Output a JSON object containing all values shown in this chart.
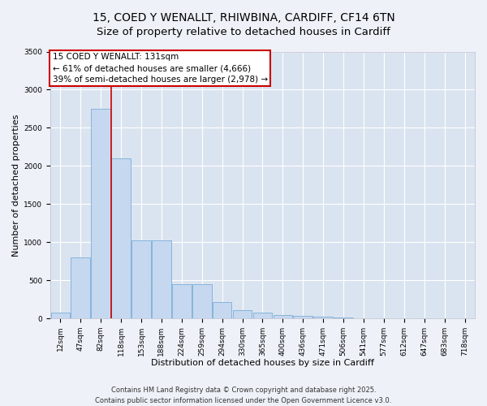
{
  "title_line1": "15, COED Y WENALLT, RHIWBINA, CARDIFF, CF14 6TN",
  "title_line2": "Size of property relative to detached houses in Cardiff",
  "xlabel": "Distribution of detached houses by size in Cardiff",
  "ylabel": "Number of detached properties",
  "categories": [
    "12sqm",
    "47sqm",
    "82sqm",
    "118sqm",
    "153sqm",
    "188sqm",
    "224sqm",
    "259sqm",
    "294sqm",
    "330sqm",
    "365sqm",
    "400sqm",
    "436sqm",
    "471sqm",
    "506sqm",
    "541sqm",
    "577sqm",
    "612sqm",
    "647sqm",
    "683sqm",
    "718sqm"
  ],
  "values": [
    80,
    800,
    2750,
    2100,
    1020,
    1020,
    450,
    450,
    220,
    110,
    80,
    50,
    30,
    20,
    8,
    5,
    3,
    2,
    1,
    1,
    0
  ],
  "bar_color": "#c5d8f0",
  "bar_edge_color": "#7aaed6",
  "vline_x": 2.5,
  "vline_color": "#cc0000",
  "annotation_title": "15 COED Y WENALLT: 131sqm",
  "annotation_line2": "← 61% of detached houses are smaller (4,666)",
  "annotation_line3": "39% of semi-detached houses are larger (2,978) →",
  "ylim": [
    0,
    3500
  ],
  "yticks": [
    0,
    500,
    1000,
    1500,
    2000,
    2500,
    3000,
    3500
  ],
  "footer_line1": "Contains HM Land Registry data © Crown copyright and database right 2025.",
  "footer_line2": "Contains public sector information licensed under the Open Government Licence v3.0.",
  "background_color": "#eef2f8",
  "plot_bg_color": "#dae4f0",
  "grid_color": "#ffffff",
  "title_fontsize": 10,
  "axis_label_fontsize": 8,
  "tick_fontsize": 6.5,
  "annotation_fontsize": 7.5,
  "footer_fontsize": 6
}
